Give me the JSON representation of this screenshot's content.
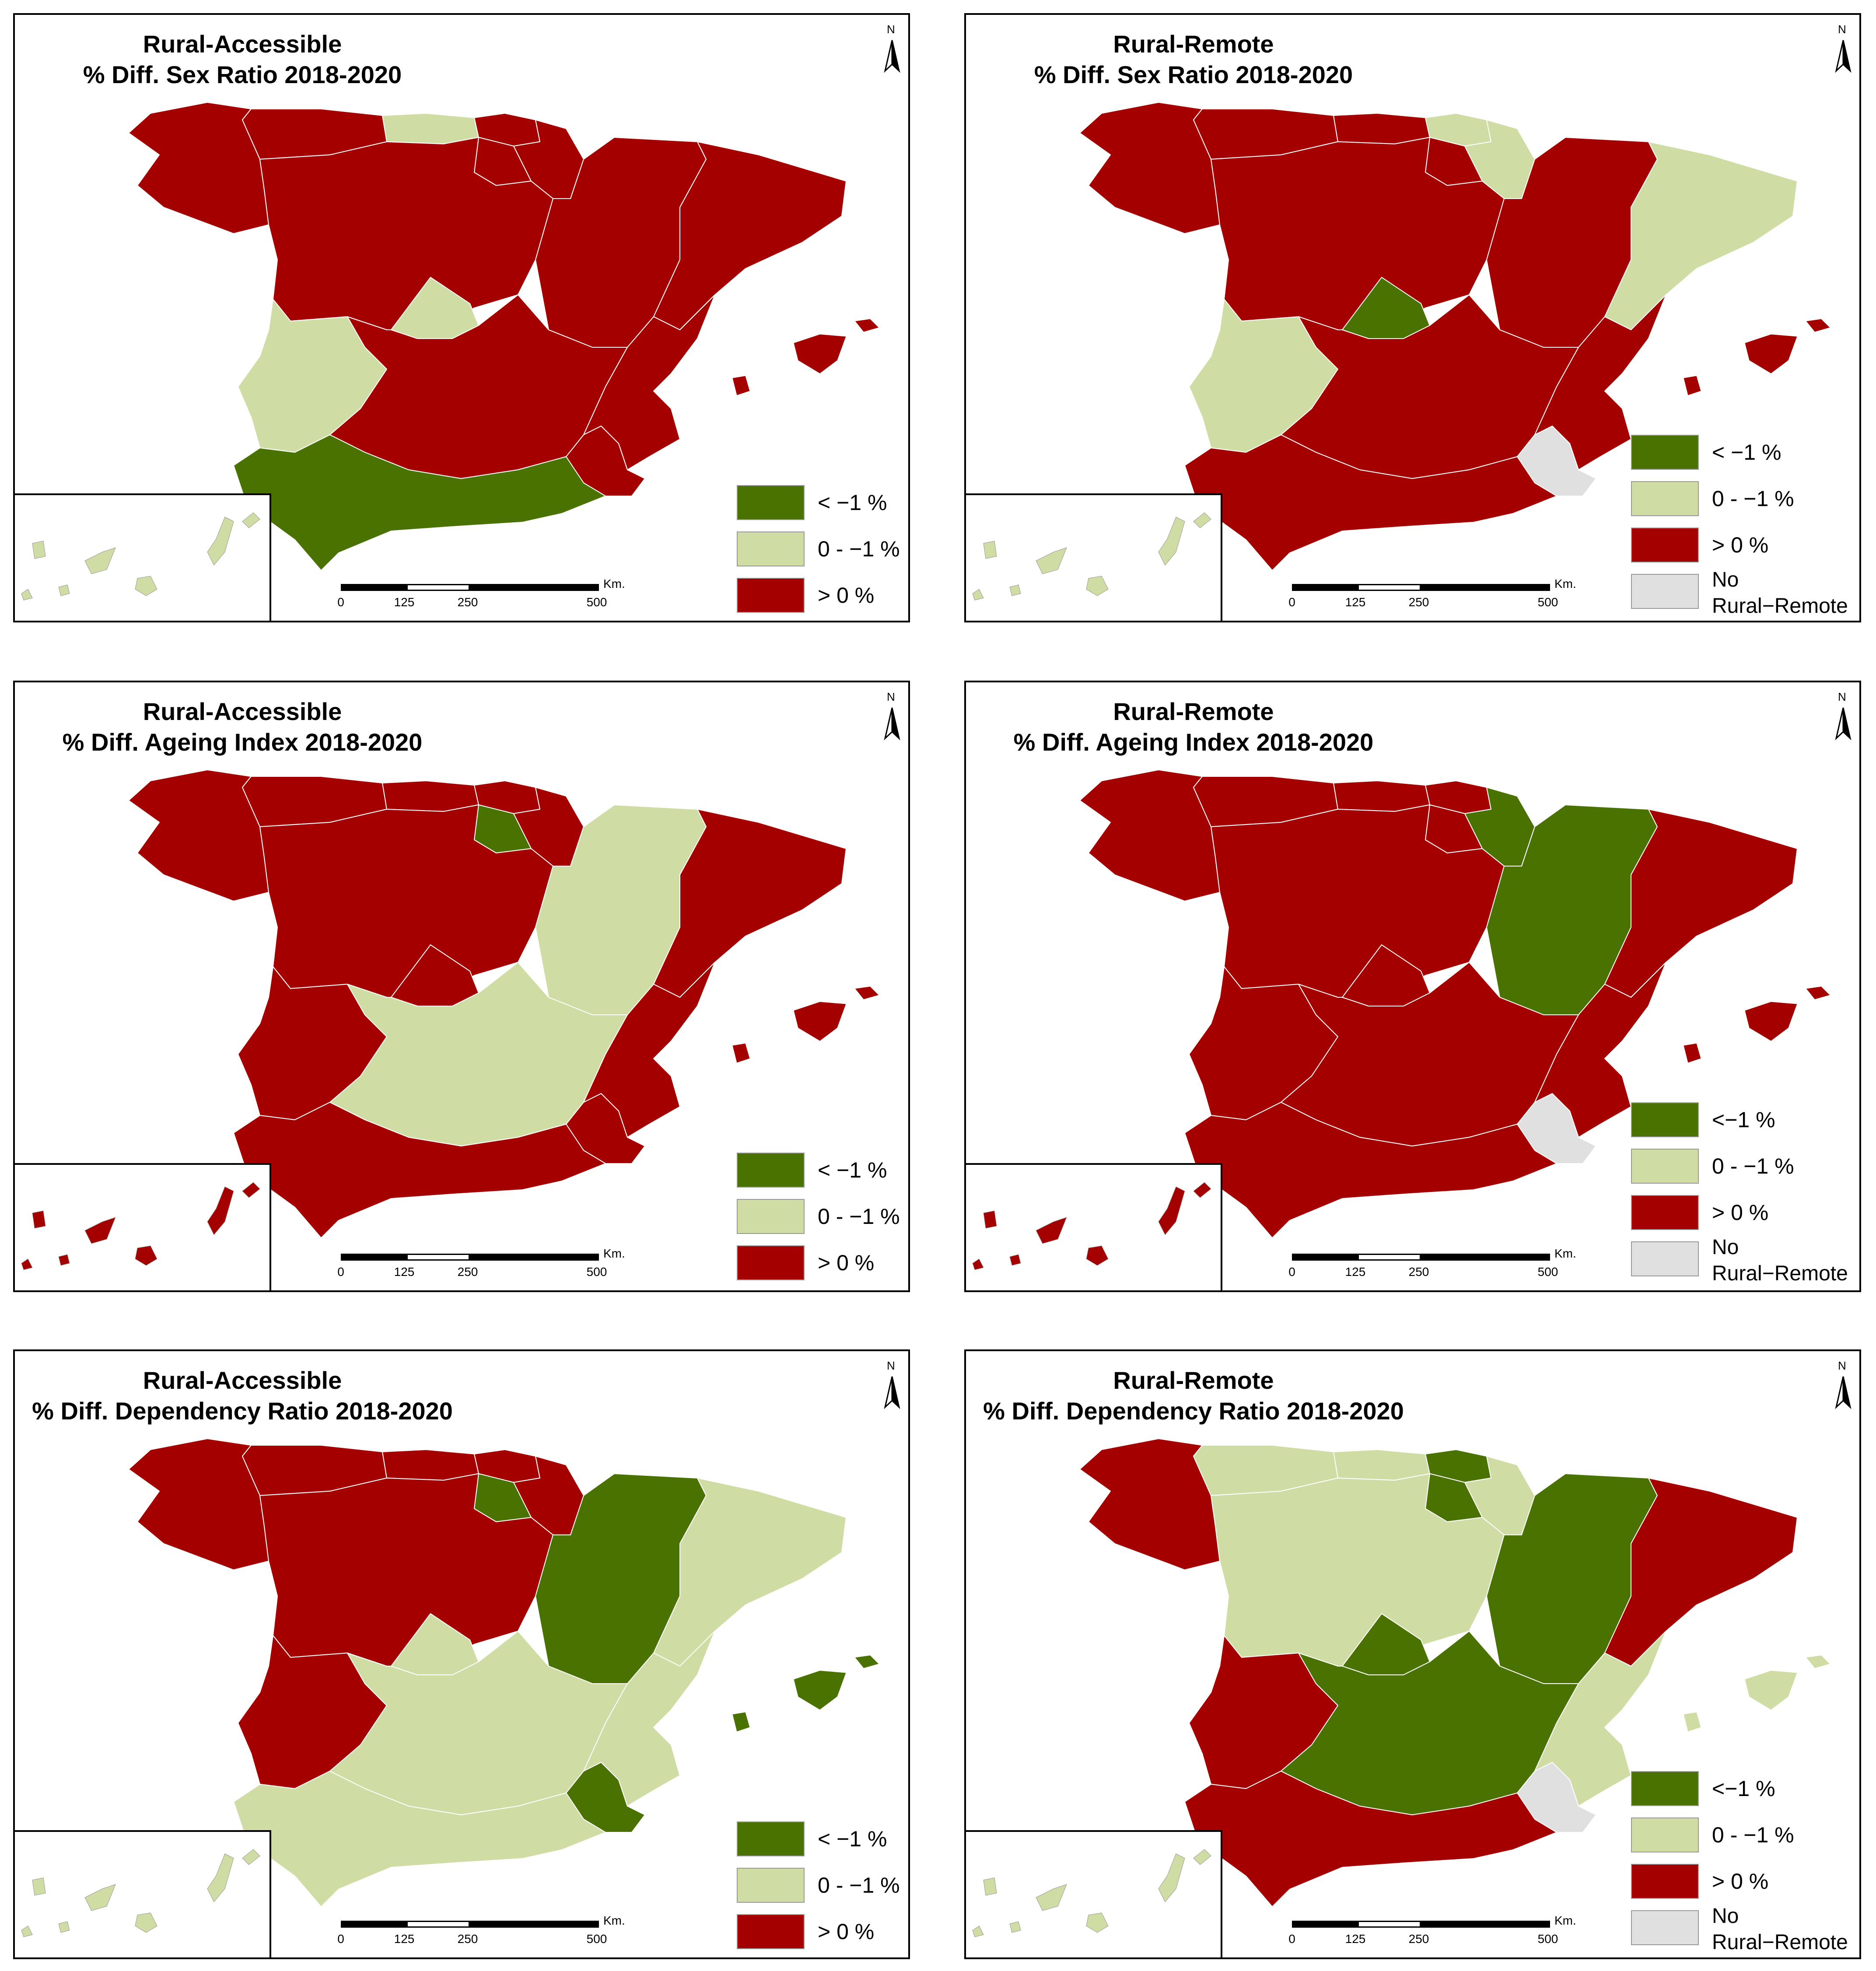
{
  "colors": {
    "dark_green": "#4a7200",
    "light_green": "#cfdda4",
    "red": "#a50000",
    "gray": "#e0e0e0",
    "border": "#ffffff"
  },
  "legend_labels": {
    "lt": "< −1 %",
    "lt_tight": "<−1 %",
    "mid": "0 - −1 %",
    "gt": "> 0 %",
    "none_1": "No",
    "none_2": "Rural−Remote"
  },
  "scale": {
    "ticks": [
      "0",
      "125",
      "250",
      "500"
    ],
    "unit": "Km."
  },
  "north_label": "N",
  "panels": [
    {
      "id": "p1",
      "title_line1": "Rural-Accessible",
      "title_line2": "% Diff. Sex Ratio 2018-2020",
      "regions": {
        "galicia": "red",
        "asturias": "red",
        "cantabria": "light_green",
        "basque": "red",
        "navarra": "red",
        "rioja": "red",
        "castilla_leon": "red",
        "madrid": "light_green",
        "aragon": "red",
        "catalonia": "red",
        "extremadura": "light_green",
        "castilla_mancha": "red",
        "valencia": "red",
        "murcia": "red",
        "andalusia": "dark_green",
        "balearics": "red",
        "canaries": "light_green"
      },
      "legend": [
        "lt",
        "mid",
        "gt"
      ]
    },
    {
      "id": "p2",
      "title_line1": "Rural-Remote",
      "title_line2": "% Diff. Sex Ratio 2018-2020",
      "regions": {
        "galicia": "red",
        "asturias": "red",
        "cantabria": "red",
        "basque": "light_green",
        "navarra": "light_green",
        "rioja": "red",
        "castilla_leon": "red",
        "madrid": "dark_green",
        "aragon": "red",
        "catalonia": "light_green",
        "extremadura": "light_green",
        "castilla_mancha": "red",
        "valencia": "red",
        "murcia": "gray",
        "andalusia": "red",
        "balearics": "red",
        "canaries": "light_green"
      },
      "legend": [
        "lt",
        "mid",
        "gt",
        "none"
      ]
    },
    {
      "id": "p3",
      "title_line1": "Rural-Accessible",
      "title_line2": "% Diff. Ageing Index 2018-2020",
      "regions": {
        "galicia": "red",
        "asturias": "red",
        "cantabria": "red",
        "basque": "red",
        "navarra": "red",
        "rioja": "dark_green",
        "castilla_leon": "red",
        "madrid": "red",
        "aragon": "light_green",
        "catalonia": "red",
        "extremadura": "red",
        "castilla_mancha": "light_green",
        "valencia": "red",
        "murcia": "red",
        "andalusia": "red",
        "balearics": "red",
        "canaries": "red"
      },
      "legend": [
        "lt",
        "mid",
        "gt"
      ]
    },
    {
      "id": "p4",
      "title_line1": "Rural-Remote",
      "title_line2": "% Diff. Ageing Index 2018-2020",
      "regions": {
        "galicia": "red",
        "asturias": "red",
        "cantabria": "red",
        "basque": "red",
        "navarra": "dark_green",
        "rioja": "red",
        "castilla_leon": "red",
        "madrid": "red",
        "aragon": "dark_green",
        "catalonia": "red",
        "extremadura": "red",
        "castilla_mancha": "red",
        "valencia": "red",
        "murcia": "gray",
        "andalusia": "red",
        "balearics": "red",
        "canaries": "red"
      },
      "legend": [
        "lt_tight",
        "mid",
        "gt",
        "none"
      ]
    },
    {
      "id": "p5",
      "title_line1": "Rural-Accessible",
      "title_line2": "% Diff. Dependency Ratio 2018-2020",
      "regions": {
        "galicia": "red",
        "asturias": "red",
        "cantabria": "red",
        "basque": "red",
        "navarra": "red",
        "rioja": "dark_green",
        "castilla_leon": "red",
        "madrid": "light_green",
        "aragon": "dark_green",
        "catalonia": "light_green",
        "extremadura": "red",
        "castilla_mancha": "light_green",
        "valencia": "light_green",
        "murcia": "dark_green",
        "andalusia": "light_green",
        "balearics": "dark_green",
        "canaries": "light_green"
      },
      "legend": [
        "lt",
        "mid",
        "gt"
      ]
    },
    {
      "id": "p6",
      "title_line1": "Rural-Remote",
      "title_line2": "% Diff. Dependency Ratio 2018-2020",
      "regions": {
        "galicia": "red",
        "asturias": "light_green",
        "cantabria": "light_green",
        "basque": "dark_green",
        "navarra": "light_green",
        "rioja": "dark_green",
        "castilla_leon": "light_green",
        "madrid": "dark_green",
        "aragon": "dark_green",
        "catalonia": "red",
        "extremadura": "red",
        "castilla_mancha": "dark_green",
        "valencia": "light_green",
        "murcia": "gray",
        "andalusia": "red",
        "balearics": "light_green",
        "canaries": "light_green"
      },
      "legend": [
        "lt_tight",
        "mid",
        "gt",
        "none"
      ]
    }
  ]
}
